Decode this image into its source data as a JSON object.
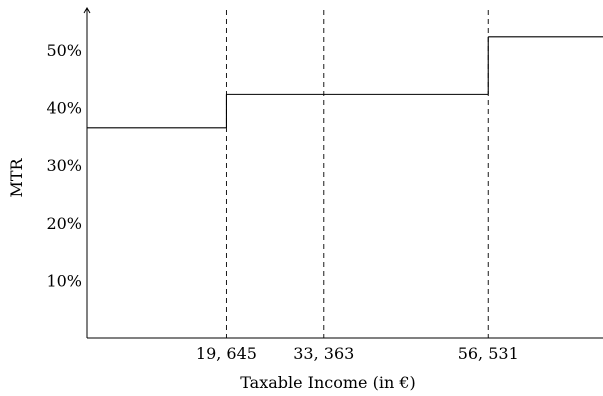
{
  "chart_data": {
    "type": "line",
    "title": "",
    "xlabel": "Taxable Income (in €)",
    "ylabel": "MTR",
    "x_ticks": [
      {
        "value": 19645,
        "label": "19, 645"
      },
      {
        "value": 33363,
        "label": "33, 363"
      },
      {
        "value": 56531,
        "label": "56, 531"
      }
    ],
    "y_ticks": [
      {
        "value": 10,
        "label": "10%"
      },
      {
        "value": 20,
        "label": "20%"
      },
      {
        "value": 30,
        "label": "30%"
      },
      {
        "value": 40,
        "label": "40%"
      },
      {
        "value": 50,
        "label": "50%"
      }
    ],
    "xlim": [
      0,
      72700
    ],
    "ylim": [
      0,
      57.3
    ],
    "grid": false,
    "legend": "none",
    "vertical_reference_lines": [
      19645,
      33363,
      56531
    ],
    "series": [
      {
        "style": "step",
        "segments": [
          {
            "x_start": 0,
            "x_end": 19645,
            "y": 36.5
          },
          {
            "x_start": 19645,
            "x_end": 56531,
            "y": 42.3
          },
          {
            "x_start": 56531,
            "x_end": 72700,
            "y": 52.3
          }
        ]
      }
    ],
    "colors": {
      "line": "#000000",
      "axis": "#000000"
    }
  }
}
